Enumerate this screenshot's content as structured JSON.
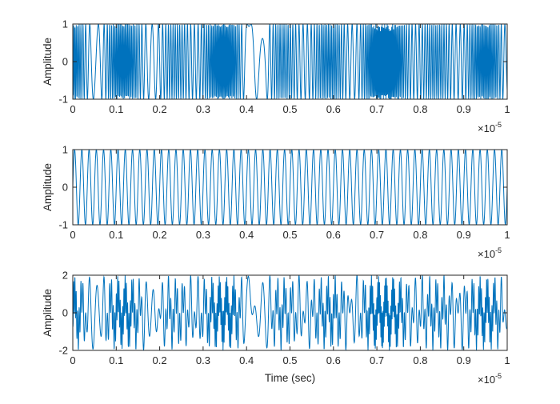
{
  "chart_data": [
    {
      "type": "line",
      "title": "",
      "xlabel": "",
      "ylabel": "Amplitude",
      "xlim": [
        0,
        1e-05
      ],
      "ylim": [
        -1,
        1
      ],
      "xticks": [
        0,
        1e-06,
        2e-06,
        3e-06,
        4e-06,
        5e-06,
        6e-06,
        7e-06,
        8e-06,
        9e-06,
        1e-05
      ],
      "xtick_labels": [
        "0",
        "0.1",
        "0.2",
        "0.3",
        "0.4",
        "0.5",
        "0.6",
        "0.7",
        "0.8",
        "0.9",
        "1"
      ],
      "yticks": [
        -1,
        0,
        1
      ],
      "ytick_labels": [
        "-1",
        "0",
        "1"
      ],
      "x_exponent_label": "×10",
      "x_exponent_power": "-5",
      "grid": false,
      "color": "#0072BD",
      "signal": {
        "kind": "chirp-like",
        "description_values": {
          "start_freq_hz": 10000000,
          "freq_variation": "wide sweep",
          "amplitude": 1
        }
      }
    },
    {
      "type": "line",
      "title": "",
      "xlabel": "",
      "ylabel": "Amplitude",
      "xlim": [
        0,
        1e-05
      ],
      "ylim": [
        -1,
        1
      ],
      "xticks": [
        0,
        1e-06,
        2e-06,
        3e-06,
        4e-06,
        5e-06,
        6e-06,
        7e-06,
        8e-06,
        9e-06,
        1e-05
      ],
      "xtick_labels": [
        "0",
        "0.1",
        "0.2",
        "0.3",
        "0.4",
        "0.5",
        "0.6",
        "0.7",
        "0.8",
        "0.9",
        "1"
      ],
      "yticks": [
        -1,
        0,
        1
      ],
      "ytick_labels": [
        "-1",
        "0",
        "1"
      ],
      "x_exponent_label": "×10",
      "x_exponent_power": "-5",
      "grid": false,
      "color": "#0072BD",
      "signal": {
        "kind": "sinusoid",
        "frequency_hz": 6000000,
        "amplitude": 1
      }
    },
    {
      "type": "line",
      "title": "",
      "xlabel": "Time (sec)",
      "ylabel": "Amplitude",
      "xlim": [
        0,
        1e-05
      ],
      "ylim": [
        -2,
        2
      ],
      "xticks": [
        0,
        1e-06,
        2e-06,
        3e-06,
        4e-06,
        5e-06,
        6e-06,
        7e-06,
        8e-06,
        9e-06,
        1e-05
      ],
      "xtick_labels": [
        "0",
        "0.1",
        "0.2",
        "0.3",
        "0.4",
        "0.5",
        "0.6",
        "0.7",
        "0.8",
        "0.9",
        "1"
      ],
      "yticks": [
        -2,
        0,
        2
      ],
      "ytick_labels": [
        "-2",
        "0",
        "2"
      ],
      "x_exponent_label": "×10",
      "x_exponent_power": "-5",
      "grid": false,
      "color": "#0072BD",
      "signal": {
        "kind": "sum of top two signals",
        "amplitude_range": [
          -1.6,
          1.9
        ]
      }
    }
  ]
}
